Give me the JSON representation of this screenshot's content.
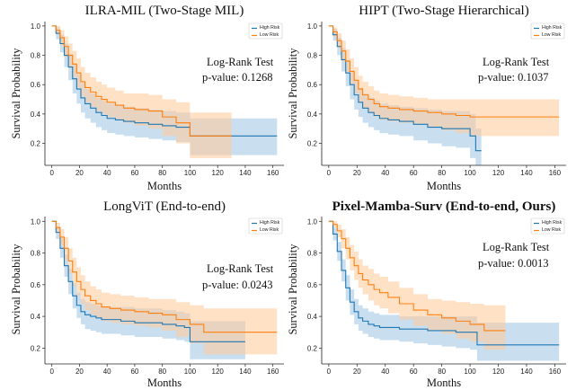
{
  "colors": {
    "high": "#1f77b4",
    "low": "#ff7f0e",
    "high_band": "#9cc4e4",
    "low_band": "#ffc898"
  },
  "chart_data": [
    {
      "type": "line",
      "title": "ILRA-MIL (Two-Stage MIL)",
      "title_bold": false,
      "xlabel": "Months",
      "ylabel": "Survival Probability",
      "annotation": [
        "Log-Rank Test",
        "p-value: 0.1268"
      ],
      "xlim": [
        -5,
        168
      ],
      "ylim": [
        0.05,
        1.03
      ],
      "xticks": [
        0,
        20,
        40,
        60,
        80,
        100,
        120,
        140,
        160
      ],
      "yticks": [
        0.2,
        0.4,
        0.6,
        0.8,
        1.0
      ],
      "legend": "top-right",
      "series": [
        {
          "name": "High Risk",
          "color": "high",
          "x": [
            0,
            3,
            6,
            9,
            12,
            15,
            18,
            21,
            24,
            28,
            32,
            36,
            40,
            46,
            52,
            60,
            70,
            80,
            90,
            100,
            163
          ],
          "y": [
            1.0,
            0.95,
            0.88,
            0.8,
            0.72,
            0.64,
            0.57,
            0.51,
            0.47,
            0.44,
            0.41,
            0.39,
            0.37,
            0.36,
            0.35,
            0.34,
            0.33,
            0.32,
            0.31,
            0.25,
            0.25
          ],
          "lower": [
            1.0,
            0.91,
            0.82,
            0.72,
            0.63,
            0.54,
            0.47,
            0.41,
            0.37,
            0.34,
            0.31,
            0.29,
            0.27,
            0.26,
            0.25,
            0.24,
            0.23,
            0.22,
            0.21,
            0.12,
            0.12
          ],
          "upper": [
            1.0,
            0.99,
            0.94,
            0.88,
            0.81,
            0.74,
            0.67,
            0.61,
            0.57,
            0.54,
            0.51,
            0.49,
            0.47,
            0.46,
            0.45,
            0.44,
            0.43,
            0.42,
            0.41,
            0.37,
            0.37
          ]
        },
        {
          "name": "Low Risk",
          "color": "low",
          "x": [
            0,
            3,
            6,
            9,
            12,
            15,
            18,
            21,
            24,
            28,
            32,
            36,
            40,
            46,
            52,
            60,
            70,
            80,
            90,
            100,
            130
          ],
          "y": [
            1.0,
            0.97,
            0.92,
            0.86,
            0.8,
            0.74,
            0.68,
            0.62,
            0.58,
            0.55,
            0.52,
            0.5,
            0.48,
            0.46,
            0.44,
            0.43,
            0.42,
            0.38,
            0.34,
            0.25,
            0.25
          ],
          "lower": [
            1.0,
            0.94,
            0.87,
            0.79,
            0.72,
            0.65,
            0.58,
            0.52,
            0.48,
            0.45,
            0.42,
            0.4,
            0.38,
            0.36,
            0.34,
            0.32,
            0.3,
            0.25,
            0.2,
            0.1,
            0.1
          ],
          "upper": [
            1.0,
            1.0,
            0.97,
            0.93,
            0.88,
            0.83,
            0.78,
            0.72,
            0.68,
            0.65,
            0.62,
            0.6,
            0.58,
            0.56,
            0.54,
            0.54,
            0.53,
            0.5,
            0.48,
            0.41,
            0.41
          ]
        }
      ]
    },
    {
      "type": "line",
      "title": "HIPT (Two-Stage Hierarchical)",
      "title_bold": false,
      "xlabel": "Months",
      "ylabel": "Survival Probability",
      "annotation": [
        "Log-Rank Test",
        "p-value: 0.1037"
      ],
      "xlim": [
        -5,
        168
      ],
      "ylim": [
        0.05,
        1.03
      ],
      "xticks": [
        0,
        20,
        40,
        60,
        80,
        100,
        120,
        140,
        160
      ],
      "yticks": [
        0.2,
        0.4,
        0.6,
        0.8,
        1.0
      ],
      "legend": "top-right",
      "series": [
        {
          "name": "High Risk",
          "color": "high",
          "x": [
            0,
            3,
            6,
            9,
            12,
            15,
            18,
            21,
            24,
            28,
            32,
            36,
            42,
            50,
            60,
            70,
            80,
            90,
            100,
            104,
            108
          ],
          "y": [
            1.0,
            0.94,
            0.86,
            0.77,
            0.68,
            0.6,
            0.53,
            0.48,
            0.44,
            0.41,
            0.39,
            0.37,
            0.36,
            0.35,
            0.33,
            0.31,
            0.3,
            0.3,
            0.25,
            0.15,
            0.15
          ],
          "lower": [
            1.0,
            0.9,
            0.8,
            0.69,
            0.59,
            0.5,
            0.43,
            0.38,
            0.34,
            0.31,
            0.29,
            0.27,
            0.26,
            0.25,
            0.22,
            0.2,
            0.18,
            0.17,
            0.1,
            0.05,
            0.05
          ],
          "upper": [
            1.0,
            0.98,
            0.92,
            0.85,
            0.77,
            0.7,
            0.63,
            0.58,
            0.54,
            0.51,
            0.49,
            0.47,
            0.46,
            0.45,
            0.44,
            0.43,
            0.42,
            0.42,
            0.4,
            0.3,
            0.3
          ]
        },
        {
          "name": "Low Risk",
          "color": "low",
          "x": [
            0,
            3,
            6,
            9,
            12,
            15,
            18,
            21,
            24,
            28,
            32,
            36,
            42,
            50,
            60,
            70,
            80,
            90,
            100,
            163
          ],
          "y": [
            1.0,
            0.96,
            0.9,
            0.83,
            0.76,
            0.69,
            0.63,
            0.57,
            0.53,
            0.5,
            0.47,
            0.45,
            0.44,
            0.43,
            0.42,
            0.41,
            0.4,
            0.39,
            0.38,
            0.38
          ],
          "lower": [
            1.0,
            0.93,
            0.85,
            0.76,
            0.68,
            0.6,
            0.54,
            0.48,
            0.44,
            0.41,
            0.38,
            0.36,
            0.35,
            0.34,
            0.33,
            0.31,
            0.29,
            0.27,
            0.25,
            0.25
          ],
          "upper": [
            1.0,
            0.99,
            0.95,
            0.9,
            0.84,
            0.78,
            0.72,
            0.66,
            0.62,
            0.59,
            0.56,
            0.54,
            0.53,
            0.52,
            0.51,
            0.5,
            0.5,
            0.5,
            0.5,
            0.5
          ]
        }
      ]
    },
    {
      "type": "line",
      "title": "LongViT (End-to-end)",
      "title_bold": false,
      "xlabel": "Months",
      "ylabel": "Survival Probability",
      "annotation": [
        "Log-Rank Test",
        "p-value: 0.0243"
      ],
      "xlim": [
        -5,
        168
      ],
      "ylim": [
        0.1,
        1.03
      ],
      "xticks": [
        0,
        20,
        40,
        60,
        80,
        100,
        120,
        140,
        160
      ],
      "yticks": [
        0.2,
        0.4,
        0.6,
        0.8,
        1.0
      ],
      "legend": "top-right",
      "series": [
        {
          "name": "High Risk",
          "color": "high",
          "x": [
            0,
            3,
            6,
            9,
            12,
            15,
            18,
            21,
            24,
            28,
            32,
            36,
            42,
            50,
            60,
            70,
            80,
            90,
            96,
            100,
            140
          ],
          "y": [
            1.0,
            0.93,
            0.83,
            0.72,
            0.62,
            0.53,
            0.47,
            0.43,
            0.41,
            0.4,
            0.39,
            0.38,
            0.38,
            0.37,
            0.36,
            0.36,
            0.35,
            0.34,
            0.33,
            0.24,
            0.24
          ],
          "lower": [
            1.0,
            0.89,
            0.77,
            0.65,
            0.54,
            0.45,
            0.39,
            0.35,
            0.32,
            0.31,
            0.3,
            0.29,
            0.29,
            0.28,
            0.27,
            0.27,
            0.26,
            0.25,
            0.24,
            0.13,
            0.13
          ],
          "upper": [
            1.0,
            0.97,
            0.89,
            0.79,
            0.7,
            0.61,
            0.55,
            0.51,
            0.49,
            0.48,
            0.47,
            0.46,
            0.46,
            0.46,
            0.45,
            0.45,
            0.44,
            0.43,
            0.42,
            0.37,
            0.37
          ]
        },
        {
          "name": "Low Risk",
          "color": "low",
          "x": [
            0,
            3,
            6,
            9,
            12,
            15,
            18,
            21,
            24,
            28,
            32,
            36,
            42,
            50,
            60,
            70,
            80,
            90,
            100,
            110,
            163
          ],
          "y": [
            1.0,
            0.96,
            0.9,
            0.83,
            0.75,
            0.68,
            0.62,
            0.57,
            0.53,
            0.5,
            0.48,
            0.46,
            0.45,
            0.44,
            0.43,
            0.42,
            0.41,
            0.38,
            0.35,
            0.3,
            0.3
          ],
          "lower": [
            1.0,
            0.93,
            0.85,
            0.76,
            0.67,
            0.59,
            0.53,
            0.48,
            0.44,
            0.41,
            0.39,
            0.37,
            0.36,
            0.35,
            0.34,
            0.33,
            0.31,
            0.27,
            0.23,
            0.16,
            0.16
          ],
          "upper": [
            1.0,
            0.99,
            0.95,
            0.9,
            0.83,
            0.77,
            0.71,
            0.66,
            0.62,
            0.59,
            0.57,
            0.55,
            0.54,
            0.53,
            0.52,
            0.51,
            0.51,
            0.49,
            0.47,
            0.45,
            0.45
          ]
        }
      ]
    },
    {
      "type": "line",
      "title": "Pixel-Mamba-Surv (End-to-end, Ours)",
      "title_bold": true,
      "xlabel": "Months",
      "ylabel": "Survival Probability",
      "annotation": [
        "Log-Rank Test",
        "p-value: 0.0013"
      ],
      "xlim": [
        -5,
        168
      ],
      "ylim": [
        0.1,
        1.03
      ],
      "xticks": [
        0,
        20,
        40,
        60,
        80,
        100,
        120,
        140,
        160
      ],
      "yticks": [
        0.2,
        0.4,
        0.6,
        0.8,
        1.0
      ],
      "legend": "top-right",
      "series": [
        {
          "name": "High Risk",
          "color": "high",
          "x": [
            0,
            3,
            6,
            9,
            12,
            15,
            18,
            21,
            24,
            28,
            32,
            36,
            42,
            50,
            60,
            70,
            80,
            90,
            100,
            105,
            163
          ],
          "y": [
            1.0,
            0.92,
            0.81,
            0.69,
            0.58,
            0.49,
            0.43,
            0.39,
            0.37,
            0.35,
            0.34,
            0.33,
            0.33,
            0.32,
            0.32,
            0.31,
            0.31,
            0.3,
            0.3,
            0.22,
            0.22
          ],
          "lower": [
            1.0,
            0.88,
            0.75,
            0.62,
            0.5,
            0.41,
            0.35,
            0.31,
            0.29,
            0.27,
            0.26,
            0.25,
            0.25,
            0.24,
            0.23,
            0.22,
            0.21,
            0.2,
            0.19,
            0.12,
            0.12
          ],
          "upper": [
            1.0,
            0.96,
            0.87,
            0.76,
            0.66,
            0.57,
            0.51,
            0.47,
            0.45,
            0.43,
            0.42,
            0.41,
            0.41,
            0.4,
            0.4,
            0.4,
            0.4,
            0.4,
            0.4,
            0.36,
            0.36
          ]
        },
        {
          "name": "Low Risk",
          "color": "low",
          "x": [
            0,
            3,
            6,
            9,
            12,
            15,
            18,
            21,
            24,
            28,
            32,
            36,
            42,
            50,
            60,
            70,
            80,
            90,
            100,
            110,
            125
          ],
          "y": [
            1.0,
            0.98,
            0.94,
            0.89,
            0.83,
            0.77,
            0.72,
            0.67,
            0.63,
            0.6,
            0.57,
            0.55,
            0.52,
            0.48,
            0.44,
            0.41,
            0.39,
            0.37,
            0.35,
            0.31,
            0.31
          ],
          "lower": [
            1.0,
            0.96,
            0.9,
            0.83,
            0.76,
            0.69,
            0.63,
            0.58,
            0.54,
            0.5,
            0.47,
            0.45,
            0.42,
            0.38,
            0.34,
            0.31,
            0.29,
            0.26,
            0.24,
            0.19,
            0.19
          ],
          "upper": [
            1.0,
            1.0,
            0.98,
            0.95,
            0.9,
            0.85,
            0.81,
            0.76,
            0.72,
            0.7,
            0.67,
            0.65,
            0.62,
            0.58,
            0.54,
            0.51,
            0.5,
            0.49,
            0.48,
            0.47,
            0.47
          ]
        }
      ]
    }
  ]
}
